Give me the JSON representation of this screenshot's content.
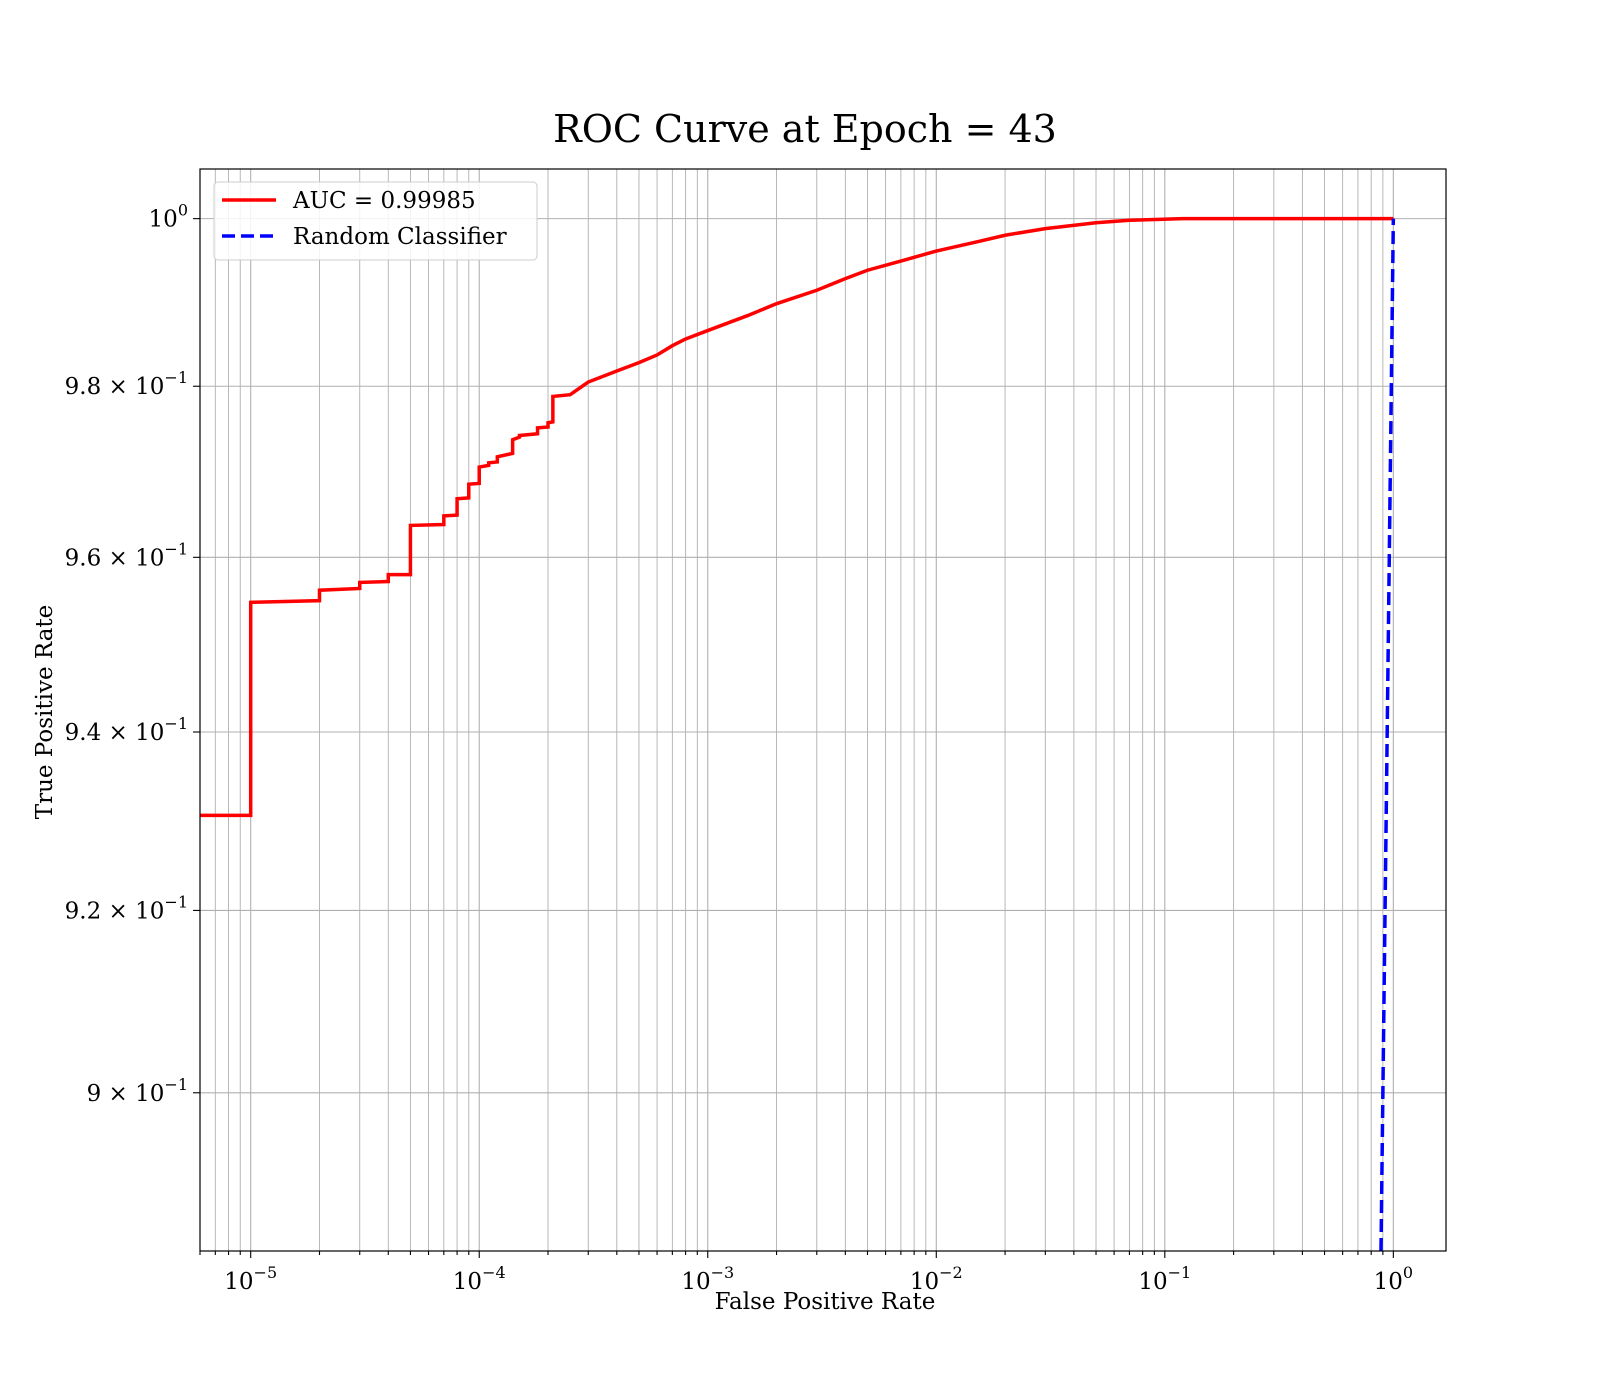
{
  "chart_data": {
    "type": "line",
    "title": "ROC Curve at Epoch = 43",
    "xlabel": "False Positive Rate",
    "ylabel": "True Positive Rate",
    "xscale": "log",
    "yscale": "log",
    "xlim": [
      6e-06,
      1.7
    ],
    "ylim": [
      0.883,
      1.006
    ],
    "grid": true,
    "legend_position": "top-left",
    "x_ticks": [
      {
        "value": 1e-05,
        "base": "10",
        "exp": "−5"
      },
      {
        "value": 0.0001,
        "base": "10",
        "exp": "−4"
      },
      {
        "value": 0.001,
        "base": "10",
        "exp": "−3"
      },
      {
        "value": 0.01,
        "base": "10",
        "exp": "−2"
      },
      {
        "value": 0.1,
        "base": "10",
        "exp": "−1"
      },
      {
        "value": 1,
        "base": "10",
        "exp": "0"
      }
    ],
    "y_ticks": [
      {
        "value": 1.0,
        "base": "10",
        "exp": "0",
        "mantissa": ""
      },
      {
        "value": 0.98,
        "base": "10",
        "exp": "−1",
        "mantissa": "9.8 × "
      },
      {
        "value": 0.96,
        "base": "10",
        "exp": "−1",
        "mantissa": "9.6 × "
      },
      {
        "value": 0.94,
        "base": "10",
        "exp": "−1",
        "mantissa": "9.4 × "
      },
      {
        "value": 0.92,
        "base": "10",
        "exp": "−1",
        "mantissa": "9.2 × "
      },
      {
        "value": 0.9,
        "base": "10",
        "exp": "−1",
        "mantissa": "9 × "
      }
    ],
    "series": [
      {
        "name": "AUC = 0.99985",
        "color": "#ff0000",
        "style": "solid",
        "points": [
          [
            6e-06,
            0.9306
          ],
          [
            1e-05,
            0.9306
          ],
          [
            1e-05,
            0.9548
          ],
          [
            2e-05,
            0.955
          ],
          [
            2e-05,
            0.9562
          ],
          [
            3e-05,
            0.9564
          ],
          [
            3e-05,
            0.9571
          ],
          [
            4e-05,
            0.9572
          ],
          [
            4e-05,
            0.958
          ],
          [
            5e-05,
            0.958
          ],
          [
            5e-05,
            0.9637
          ],
          [
            7e-05,
            0.9638
          ],
          [
            7e-05,
            0.9648
          ],
          [
            8e-05,
            0.9649
          ],
          [
            8e-05,
            0.9668
          ],
          [
            9e-05,
            0.9669
          ],
          [
            9e-05,
            0.9685
          ],
          [
            0.0001,
            0.9686
          ],
          [
            0.0001,
            0.9705
          ],
          [
            0.00011,
            0.9707
          ],
          [
            0.00011,
            0.971
          ],
          [
            0.00012,
            0.9711
          ],
          [
            0.00012,
            0.9717
          ],
          [
            0.00014,
            0.9721
          ],
          [
            0.00014,
            0.9737
          ],
          [
            0.00015,
            0.974
          ],
          [
            0.00015,
            0.9742
          ],
          [
            0.00018,
            0.9744
          ],
          [
            0.00018,
            0.9751
          ],
          [
            0.0002,
            0.9752
          ],
          [
            0.0002,
            0.9757
          ],
          [
            0.00021,
            0.9758
          ],
          [
            0.00021,
            0.9788
          ],
          [
            0.00025,
            0.979
          ],
          [
            0.0003,
            0.9805
          ],
          [
            0.0004,
            0.9818
          ],
          [
            0.0005,
            0.9828
          ],
          [
            0.0006,
            0.9837
          ],
          [
            0.0007,
            0.9848
          ],
          [
            0.0008,
            0.9856
          ],
          [
            0.001,
            0.9866
          ],
          [
            0.0015,
            0.9884
          ],
          [
            0.002,
            0.9898
          ],
          [
            0.003,
            0.9914
          ],
          [
            0.004,
            0.9928
          ],
          [
            0.005,
            0.9938
          ],
          [
            0.007,
            0.9949
          ],
          [
            0.01,
            0.9961
          ],
          [
            0.015,
            0.9972
          ],
          [
            0.02,
            0.998
          ],
          [
            0.03,
            0.9988
          ],
          [
            0.05,
            0.9995
          ],
          [
            0.07,
            0.9998
          ],
          [
            0.12,
            1.0
          ],
          [
            1.0,
            1.0
          ]
        ]
      },
      {
        "name": "Random Classifier",
        "color": "#0000ff",
        "style": "dashed",
        "points": [
          [
            0.883,
            0.883
          ],
          [
            0.89,
            0.89
          ],
          [
            0.9,
            0.9
          ],
          [
            0.92,
            0.92
          ],
          [
            0.94,
            0.94
          ],
          [
            0.96,
            0.96
          ],
          [
            0.98,
            0.98
          ],
          [
            1.0,
            1.0
          ]
        ]
      }
    ]
  }
}
